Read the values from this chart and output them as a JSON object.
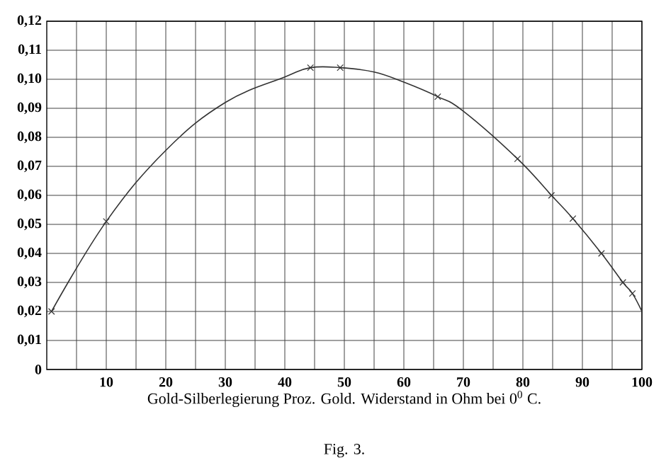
{
  "chart_data": {
    "type": "line",
    "xlabel": "Gold-Silberlegierung Proz. Gold.  Widerstand in Ohm bei 0$^{0}$ C.",
    "annotations": [
      "Fig. 3."
    ],
    "series": [
      {
        "type": "line",
        "color": "#333333",
        "marker": "none",
        "x": [
          0.8,
          10,
          20,
          30,
          40,
          44.3,
          49.3,
          55,
          60,
          65.7,
          70,
          79.1,
          84.8,
          88.4,
          93.2,
          96.8,
          98.4,
          100
        ],
        "values": [
          0.02,
          0.051,
          0.0755,
          0.092,
          0.1008,
          0.104,
          0.104,
          0.1025,
          0.099,
          0.094,
          0.089,
          0.0726,
          0.06,
          0.052,
          0.04,
          0.03,
          0.0262,
          0.02
        ]
      },
      {
        "type": "scatter",
        "color": "#333333",
        "marker": "cross",
        "x": [
          0.8,
          10,
          44.3,
          49.3,
          65.7,
          79.1,
          84.8,
          88.4,
          93.2,
          96.8,
          98.4
        ],
        "values": [
          0.02,
          0.051,
          0.104,
          0.104,
          0.094,
          0.0726,
          0.06,
          0.052,
          0.04,
          0.03,
          0.0262
        ]
      }
    ],
    "xlim": [
      0,
      100
    ],
    "xticks": [
      {
        "value": 5,
        "label": null
      },
      10,
      {
        "value": 15,
        "label": null
      },
      20,
      {
        "value": 25,
        "label": null
      },
      30,
      {
        "value": 35,
        "label": null
      },
      40,
      {
        "value": 45,
        "label": null
      },
      50,
      {
        "value": 55,
        "label": null
      },
      60,
      {
        "value": 65,
        "label": null
      },
      70,
      {
        "value": 75,
        "label": null
      },
      80,
      {
        "value": 85,
        "label": null
      },
      90,
      {
        "value": 95,
        "label": null
      },
      100
    ],
    "ylim": [
      0,
      0.12
    ],
    "yticks": [
      0,
      {
        "value": 0.01,
        "label": "0,01"
      },
      {
        "value": 0.02,
        "label": "0,02"
      },
      {
        "value": 0.03,
        "label": "0,03"
      },
      {
        "value": 0.04,
        "label": "0,04"
      },
      {
        "value": 0.05,
        "label": "0,05"
      },
      {
        "value": 0.06,
        "label": "0,06"
      },
      {
        "value": 0.07,
        "label": "0,07"
      },
      {
        "value": 0.08,
        "label": "0,08"
      },
      {
        "value": 0.09,
        "label": "0,09"
      },
      {
        "value": 0.1,
        "label": "0,10"
      },
      {
        "value": 0.11,
        "label": "0,11"
      },
      {
        "value": 0.12,
        "label": "0,12"
      }
    ],
    "grid": true
  }
}
